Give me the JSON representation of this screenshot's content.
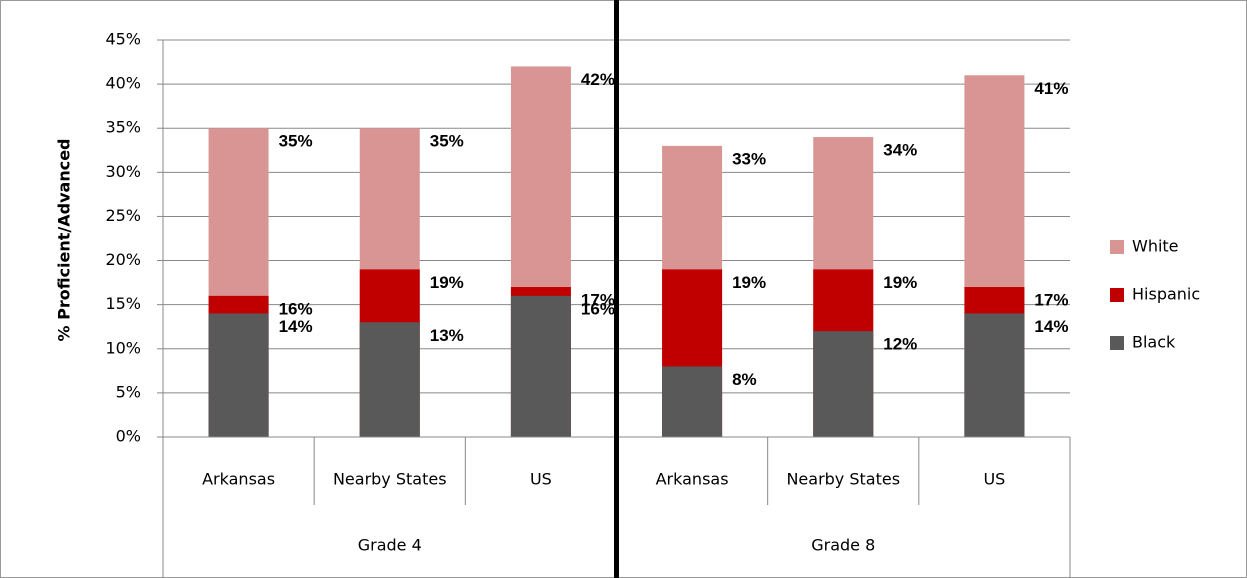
{
  "chart_data": {
    "type": "bar",
    "overlap": true,
    "y_label": "% Proficient/Advanced",
    "categories": [
      "Arkansas",
      "Nearby States",
      "US",
      "Arkansas",
      "Nearby States",
      "US"
    ],
    "groups": [
      {
        "name": "Grade 4",
        "size": 3
      },
      {
        "name": "Grade 8",
        "size": 3
      }
    ],
    "series": [
      {
        "name": "White",
        "color": "#d99594",
        "values": [
          35,
          35,
          42,
          33,
          34,
          41
        ],
        "value_labels": [
          "35%",
          "35%",
          "42%",
          "33%",
          "34%",
          "41%"
        ]
      },
      {
        "name": "Hispanic",
        "color": "#c00000",
        "values": [
          16,
          19,
          17,
          19,
          19,
          17
        ],
        "value_labels": [
          "16%",
          "19%",
          "17%",
          "19%",
          "19%",
          "17%"
        ]
      },
      {
        "name": "Black",
        "color": "#595959",
        "values": [
          14,
          13,
          16,
          8,
          12,
          14
        ],
        "value_labels": [
          "14%",
          "13%",
          "16%",
          "8%",
          "12%",
          "14%"
        ]
      }
    ],
    "ylim": [
      0,
      45
    ],
    "yticks": [
      {
        "value": 0,
        "label": "0%"
      },
      {
        "value": 5,
        "label": "5%"
      },
      {
        "value": 10,
        "label": "10%"
      },
      {
        "value": 15,
        "label": "15%"
      },
      {
        "value": 20,
        "label": "20%"
      },
      {
        "value": 25,
        "label": "25%"
      },
      {
        "value": 30,
        "label": "30%"
      },
      {
        "value": 35,
        "label": "35%"
      },
      {
        "value": 40,
        "label": "40%"
      },
      {
        "value": 45,
        "label": "45%"
      }
    ],
    "grid": true,
    "legend": "right"
  }
}
